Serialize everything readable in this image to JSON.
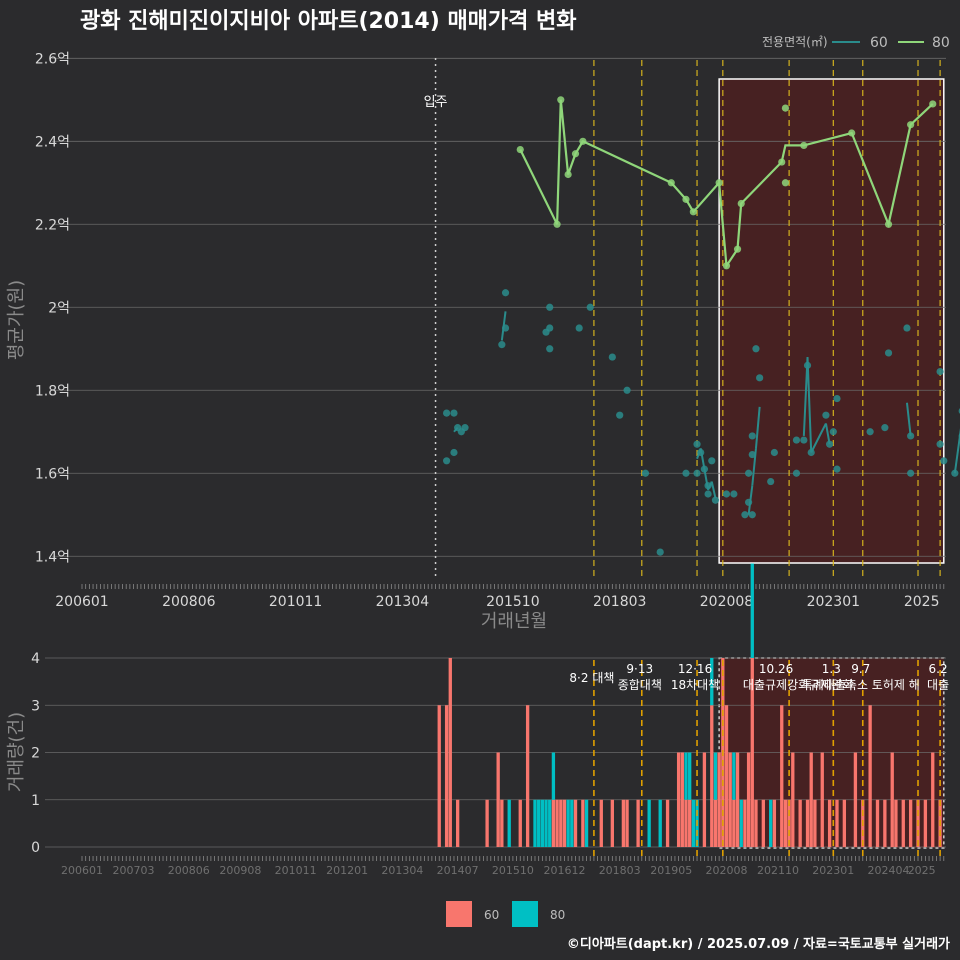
{
  "page": {
    "title": "광화 진해미진이지비아 아파트(2014) 매매가격 변화",
    "footer": "©디아파트(dapt.kr) / 2025.07.09 / 자료=국토교통부 실거래가"
  },
  "colors": {
    "background": "#2b2b2d",
    "grid": "#6a6a6a",
    "series60": "#2a8c8c",
    "series80": "#8fd67a",
    "bar60": "#f8766d",
    "bar80": "#00bfc4",
    "policy": "#d4b21e",
    "highlight": "#5a1a1a"
  },
  "chart_data": [
    {
      "type": "line",
      "ylabel": "평균가(원)",
      "xlabel": "거래년월",
      "ylim": [
        1.35,
        2.62
      ],
      "yticks": [
        1.4,
        1.6,
        1.8,
        2.0,
        2.2,
        2.4,
        2.6
      ],
      "ytick_labels": [
        "1.4억",
        "1.6억",
        "1.8억",
        "2억",
        "2.2억",
        "2.4억",
        "2.6억"
      ],
      "xticks": [
        "200601",
        "200806",
        "201011",
        "201304",
        "201510",
        "201803",
        "202008",
        "202301",
        "2025"
      ],
      "legend": {
        "title": "전용면적(㎡)",
        "placement": "top-right",
        "items": [
          "60",
          "80"
        ]
      },
      "annotation": {
        "label": "입주",
        "x": "2014-01"
      },
      "policy_lines": [
        "2017-08",
        "2018-09",
        "2019-12",
        "2020-07",
        "2022-01",
        "2023-01",
        "2023-09",
        "2024-12",
        "2025-06"
      ],
      "highlight": {
        "from": "2020-06",
        "to": "2025-07"
      },
      "series": [
        {
          "name": "60",
          "points": [
            [
              "2014-04",
              1.63
            ],
            [
              "2014-04",
              1.745
            ],
            [
              "2014-06",
              1.745
            ],
            [
              "2014-06",
              1.65
            ],
            [
              "2014-07",
              1.71
            ],
            [
              "2014-08",
              1.7
            ],
            [
              "2014-09",
              1.71
            ],
            [
              "2015-07",
              1.91
            ],
            [
              "2015-08",
              1.95
            ],
            [
              "2015-08",
              2.035
            ],
            [
              "2016-07",
              1.94
            ],
            [
              "2016-08",
              1.9
            ],
            [
              "2016-08",
              1.95
            ],
            [
              "2016-08",
              2.0
            ],
            [
              "2017-04",
              1.95
            ],
            [
              "2017-07",
              2.0
            ],
            [
              "2018-01",
              1.88
            ],
            [
              "2018-03",
              1.74
            ],
            [
              "2018-05",
              1.8
            ],
            [
              "2018-10",
              1.6
            ],
            [
              "2019-02",
              1.41
            ],
            [
              "2019-09",
              1.6
            ],
            [
              "2019-12",
              1.6
            ],
            [
              "2019-12",
              1.67
            ],
            [
              "2020-01",
              1.65
            ],
            [
              "2020-02",
              1.61
            ],
            [
              "2020-03",
              1.57
            ],
            [
              "2020-03",
              1.55
            ],
            [
              "2020-04",
              1.63
            ],
            [
              "2020-05",
              1.535
            ],
            [
              "2020-08",
              1.55
            ],
            [
              "2020-10",
              1.55
            ],
            [
              "2021-01",
              1.5
            ],
            [
              "2021-02",
              1.53
            ],
            [
              "2021-02",
              1.6
            ],
            [
              "2021-03",
              1.5
            ],
            [
              "2021-03",
              1.645
            ],
            [
              "2021-03",
              1.69
            ],
            [
              "2021-04",
              1.9
            ],
            [
              "2021-05",
              1.83
            ],
            [
              "2021-08",
              1.58
            ],
            [
              "2021-09",
              1.65
            ],
            [
              "2022-03",
              1.6
            ],
            [
              "2022-03",
              1.68
            ],
            [
              "2022-05",
              1.68
            ],
            [
              "2022-06",
              1.86
            ],
            [
              "2022-07",
              1.65
            ],
            [
              "2022-11",
              1.74
            ],
            [
              "2022-12",
              1.67
            ],
            [
              "2023-01",
              1.7
            ],
            [
              "2023-02",
              1.78
            ],
            [
              "2023-02",
              1.61
            ],
            [
              "2023-11",
              1.7
            ],
            [
              "2024-03",
              1.71
            ],
            [
              "2024-04",
              1.89
            ],
            [
              "2024-09",
              1.95
            ],
            [
              "2024-10",
              1.6
            ],
            [
              "2024-10",
              1.69
            ],
            [
              "2025-06",
              1.845
            ],
            [
              "2025-06",
              1.67
            ],
            [
              "2025-07",
              1.63
            ],
            [
              "2025-10",
              1.6
            ],
            [
              "2025-12",
              1.69
            ],
            [
              "2025-12",
              1.75
            ],
            [
              "2026-01",
              1.84
            ],
            [
              "2026-03",
              1.8
            ],
            [
              "2026-09",
              1.745
            ],
            [
              "2027-02",
              1.75
            ],
            [
              "2027-04",
              1.745
            ]
          ],
          "line": [
            [
              "2014-06",
              1.7
            ],
            [
              "2014-07",
              1.71
            ],
            [
              "2015-07",
              1.92
            ],
            [
              "2015-08",
              1.99
            ],
            [
              "2019-12",
              1.635
            ],
            [
              "2020-01",
              1.66
            ],
            [
              "2020-03",
              1.56
            ],
            [
              "2020-04",
              1.58
            ],
            [
              "2020-05",
              1.54
            ],
            [
              "2021-02",
              1.5
            ],
            [
              "2021-03",
              1.57
            ],
            [
              "2021-04",
              1.66
            ],
            [
              "2021-05",
              1.76
            ],
            [
              "2022-05",
              1.69
            ],
            [
              "2022-06",
              1.88
            ],
            [
              "2022-07",
              1.65
            ],
            [
              "2022-11",
              1.72
            ],
            [
              "2022-12",
              1.67
            ],
            [
              "2024-09",
              1.77
            ],
            [
              "2024-10",
              1.69
            ],
            [
              "2025-10",
              1.6
            ],
            [
              "2025-12",
              1.73
            ],
            [
              "2026-01",
              1.84
            ]
          ]
        },
        {
          "name": "80",
          "points": [
            [
              "2015-12",
              2.38
            ],
            [
              "2016-10",
              2.2
            ],
            [
              "2016-11",
              2.5
            ],
            [
              "2017-01",
              2.32
            ],
            [
              "2017-03",
              2.37
            ],
            [
              "2017-05",
              2.4
            ],
            [
              "2019-05",
              2.3
            ],
            [
              "2019-09",
              2.26
            ],
            [
              "2019-11",
              2.23
            ],
            [
              "2020-06",
              2.3
            ],
            [
              "2020-08",
              2.1
            ],
            [
              "2020-11",
              2.14
            ],
            [
              "2020-12",
              2.25
            ],
            [
              "2021-11",
              2.35
            ],
            [
              "2021-12",
              2.3
            ],
            [
              "2021-12",
              2.48
            ],
            [
              "2022-05",
              2.39
            ],
            [
              "2023-06",
              2.42
            ],
            [
              "2024-04",
              2.2
            ],
            [
              "2024-10",
              2.44
            ],
            [
              "2025-04",
              2.49
            ]
          ],
          "line": [
            [
              "2015-12",
              2.38
            ],
            [
              "2016-10",
              2.2
            ],
            [
              "2016-11",
              2.5
            ],
            [
              "2017-01",
              2.32
            ],
            [
              "2017-03",
              2.37
            ],
            [
              "2017-05",
              2.4
            ],
            [
              "2019-05",
              2.3
            ],
            [
              "2019-09",
              2.26
            ],
            [
              "2019-11",
              2.23
            ],
            [
              "2020-06",
              2.3
            ],
            [
              "2020-08",
              2.1
            ],
            [
              "2020-11",
              2.14
            ],
            [
              "2020-12",
              2.25
            ],
            [
              "2021-11",
              2.35
            ],
            [
              "2021-12",
              2.39
            ],
            [
              "2022-05",
              2.39
            ],
            [
              "2023-06",
              2.42
            ],
            [
              "2024-04",
              2.2
            ],
            [
              "2024-10",
              2.44
            ],
            [
              "2025-04",
              2.49
            ]
          ]
        }
      ]
    },
    {
      "type": "bar",
      "ylabel": "거래량(건)",
      "ylim": [
        0,
        4
      ],
      "yticks": [
        0,
        1,
        2,
        3,
        4
      ],
      "xticks": [
        "200601",
        "200703",
        "200806",
        "200908",
        "201011",
        "201201",
        "201304",
        "201407",
        "201510",
        "201612",
        "201803",
        "201905",
        "202008",
        "202110",
        "202301",
        "202404",
        "2025"
      ],
      "legend": {
        "placement": "bottom",
        "items": [
          "60",
          "80"
        ]
      },
      "highlight": {
        "from": "2020-06",
        "to": "2025-07"
      },
      "policy_labels": [
        {
          "x": "2017-08",
          "lines": [
            "8·2 대책"
          ]
        },
        {
          "x": "2018-09",
          "lines": [
            "9·13",
            "종합대책"
          ]
        },
        {
          "x": "2019-12",
          "lines": [
            "12·16",
            "18차대책"
          ]
        },
        {
          "x": "2021-10",
          "lines": [
            "10.26",
            "대출규제강화"
          ]
        },
        {
          "x": "2023-01",
          "lines": [
            "1.3",
            "규제완화"
          ]
        },
        {
          "x": "2023-09",
          "lines": [
            "9.7",
            "특례대출축소 토허제 해"
          ]
        },
        {
          "x": "2025-06",
          "lines": [
            "6.2",
            "대출"
          ]
        }
      ],
      "categories": [
        "2014-02",
        "2014-04",
        "2014-05",
        "2014-07",
        "2015-03",
        "2015-06",
        "2015-07",
        "2015-09",
        "2015-12",
        "2016-02",
        "2016-04",
        "2016-05",
        "2016-06",
        "2016-07",
        "2016-08",
        "2016-09",
        "2016-10",
        "2016-11",
        "2016-12",
        "2017-01",
        "2017-02",
        "2017-03",
        "2017-05",
        "2017-06",
        "2017-10",
        "2018-01",
        "2018-04",
        "2018-05",
        "2018-08",
        "2018-11",
        "2019-02",
        "2019-04",
        "2019-07",
        "2019-08",
        "2019-09",
        "2019-10",
        "2019-11",
        "2019-12",
        "2020-02",
        "2020-04",
        "2020-05",
        "2020-06",
        "2020-07",
        "2020-08",
        "2020-09",
        "2020-10",
        "2020-11",
        "2020-12",
        "2021-01",
        "2021-02",
        "2021-03",
        "2021-04",
        "2021-06",
        "2021-08",
        "2021-09",
        "2021-11",
        "2021-12",
        "2022-01",
        "2022-02",
        "2022-04",
        "2022-06",
        "2022-07",
        "2022-08",
        "2022-10",
        "2022-12",
        "2023-02",
        "2023-04",
        "2023-07",
        "2023-09",
        "2023-11",
        "2024-01",
        "2024-03",
        "2024-05",
        "2024-06",
        "2024-08",
        "2024-10",
        "2024-12",
        "2025-02",
        "2025-04",
        "2025-06"
      ],
      "series": [
        {
          "name": "60",
          "values": [
            3,
            3,
            4,
            1,
            1,
            2,
            1,
            0,
            1,
            3,
            0,
            0,
            0,
            0,
            0,
            1,
            1,
            1,
            1,
            0,
            0,
            1,
            1,
            0,
            1,
            1,
            1,
            1,
            1,
            0,
            0,
            1,
            2,
            2,
            1,
            1,
            0,
            0,
            2,
            3,
            1,
            2,
            4,
            3,
            2,
            1,
            2,
            0,
            1,
            2,
            4,
            1,
            1,
            0,
            1,
            3,
            1,
            1,
            2,
            1,
            1,
            2,
            1,
            2,
            1,
            1,
            1,
            2,
            1,
            3,
            1,
            1,
            2,
            1,
            1,
            1,
            1,
            1,
            2,
            1
          ]
        },
        {
          "name": "80",
          "values": [
            0,
            0,
            0,
            0,
            0,
            0,
            0,
            1,
            0,
            0,
            1,
            1,
            1,
            1,
            1,
            1,
            0,
            0,
            0,
            1,
            1,
            0,
            0,
            1,
            0,
            0,
            0,
            0,
            0,
            1,
            1,
            0,
            0,
            0,
            1,
            1,
            1,
            1,
            0,
            1,
            1,
            0,
            0,
            0,
            0,
            1,
            0,
            1,
            0,
            0,
            2,
            0,
            0,
            1,
            0,
            0,
            0,
            0,
            0,
            0,
            0,
            0,
            0,
            0,
            0,
            0,
            0,
            0,
            0,
            0,
            0,
            0,
            0,
            0,
            0,
            0,
            0,
            0,
            0,
            0
          ]
        }
      ]
    }
  ]
}
